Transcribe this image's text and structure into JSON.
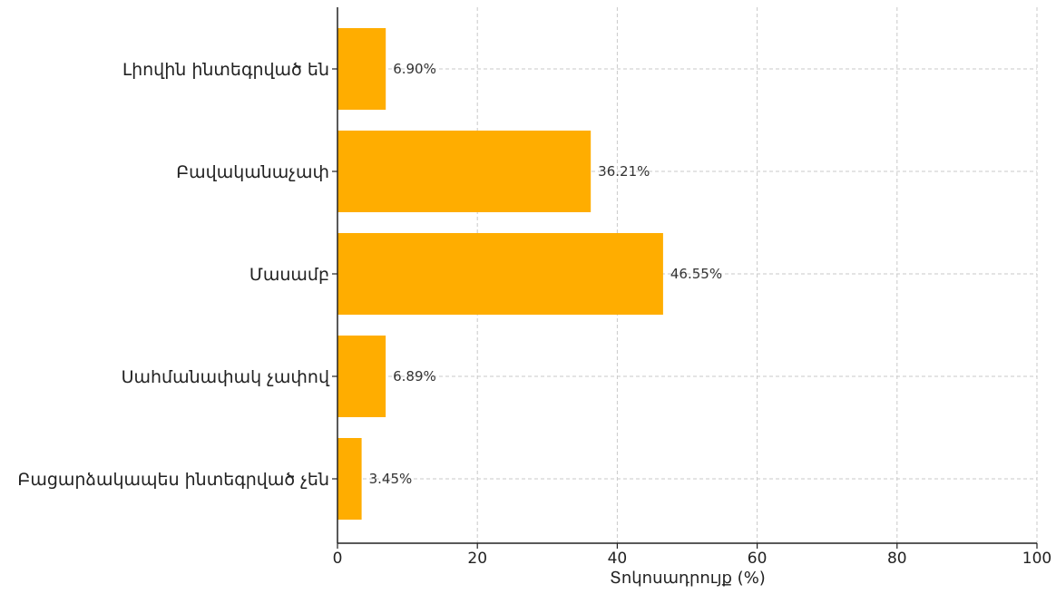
{
  "chart_data": {
    "type": "bar",
    "orientation": "horizontal",
    "categories": [
      "Լիովին ինտեգրված են",
      "Բավականաչափ",
      "Մասամբ",
      "Սահմանափակ չափով",
      "Բացարձակապես ինտեգրված չեն"
    ],
    "values": [
      6.9,
      36.21,
      46.55,
      6.89,
      3.45
    ],
    "value_labels": [
      "6.90%",
      "36.21%",
      "46.55%",
      "6.89%",
      "3.45%"
    ],
    "xlabel": "Տոկոսադրույք (%)",
    "ylabel": "",
    "title": "",
    "xlim": [
      0,
      100
    ],
    "xticks": [
      0,
      20,
      40,
      60,
      80,
      100
    ],
    "xtick_labels": [
      "0",
      "20",
      "40",
      "60",
      "80",
      "100"
    ],
    "grid": true,
    "bar_color": "#FFAD00"
  }
}
